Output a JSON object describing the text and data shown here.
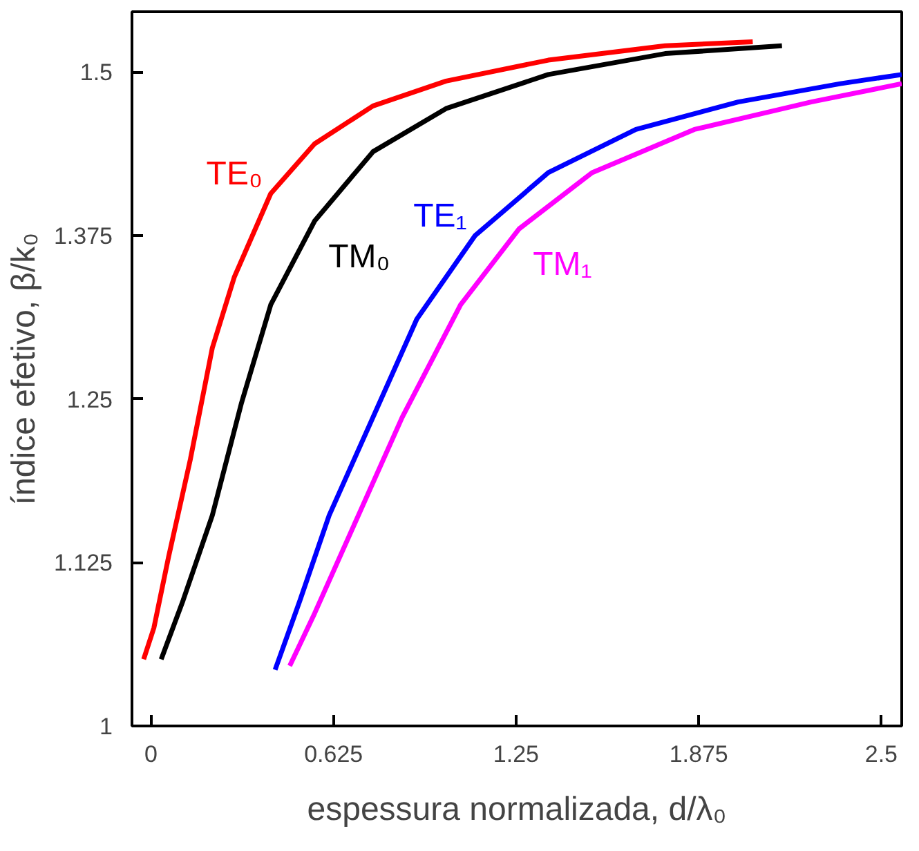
{
  "chart_data": {
    "type": "line",
    "xlabel": "espessura normalizada, d/λ₀",
    "ylabel": "índice efetivo, β/k₀",
    "xlim": [
      -0.065,
      2.57
    ],
    "ylim": [
      1,
      1.546
    ],
    "xticks": [
      0,
      0.625,
      1.25,
      1.875,
      2.5
    ],
    "yticks": [
      1,
      1.125,
      1.25,
      1.375,
      1.5
    ],
    "grid": false,
    "line_style": "solid",
    "series": [
      {
        "name": "TE₀",
        "color": "#ff0000",
        "x": [
          -0.025,
          0.01,
          0.06,
          0.135,
          0.21,
          0.285,
          0.41,
          0.56,
          0.76,
          1.01,
          1.36,
          1.76,
          2.06
        ],
        "values": [
          1.051,
          1.075,
          1.129,
          1.204,
          1.289,
          1.343,
          1.407,
          1.445,
          1.474,
          1.493,
          1.509,
          1.52,
          1.523
        ]
      },
      {
        "name": "TM₀",
        "color": "#000000",
        "x": [
          0.035,
          0.11,
          0.21,
          0.31,
          0.41,
          0.56,
          0.76,
          1.01,
          1.36,
          1.76,
          2.16
        ],
        "values": [
          1.051,
          1.096,
          1.161,
          1.247,
          1.322,
          1.386,
          1.439,
          1.472,
          1.498,
          1.514,
          1.52
        ]
      },
      {
        "name": "TE₁",
        "color": "#0000ff",
        "x": [
          0.425,
          0.51,
          0.61,
          0.76,
          0.91,
          1.11,
          1.36,
          1.66,
          2.01,
          2.36,
          2.57
        ],
        "values": [
          1.043,
          1.096,
          1.161,
          1.236,
          1.311,
          1.375,
          1.423,
          1.456,
          1.477,
          1.491,
          1.498
        ]
      },
      {
        "name": "TM₁",
        "color": "#ff00ff",
        "x": [
          0.475,
          0.56,
          0.71,
          0.86,
          1.06,
          1.26,
          1.51,
          1.86,
          2.26,
          2.57
        ],
        "values": [
          1.046,
          1.086,
          1.161,
          1.236,
          1.322,
          1.38,
          1.423,
          1.456,
          1.477,
          1.491
        ]
      }
    ]
  }
}
